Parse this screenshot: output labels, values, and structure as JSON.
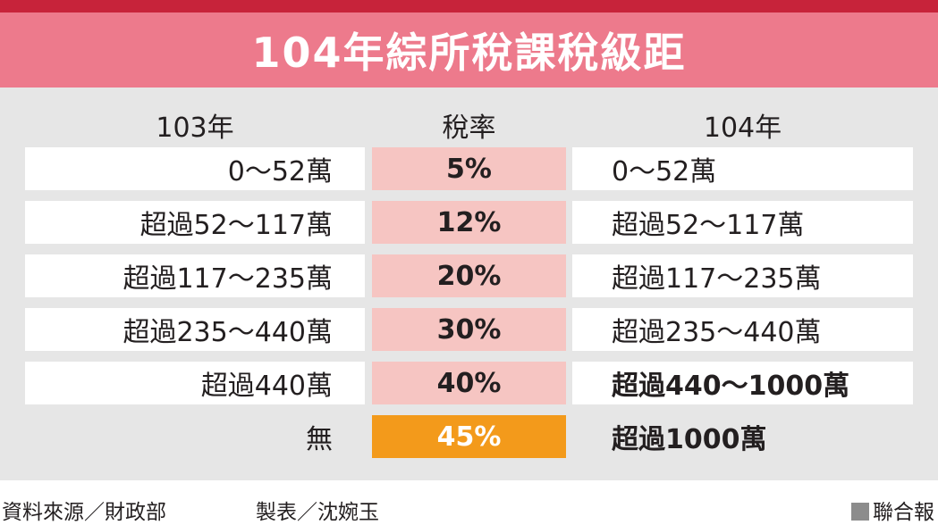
{
  "title": "104年綜所稅課稅級距",
  "headers": {
    "year_103": "103年",
    "rate": "稅率",
    "year_104": "104年"
  },
  "rows": [
    {
      "y103": "0～52萬",
      "rate": "5%",
      "y104": "0～52萬"
    },
    {
      "y103": "超過52～117萬",
      "rate": "12%",
      "y104": "超過52～117萬"
    },
    {
      "y103": "超過117～235萬",
      "rate": "20%",
      "y104": "超過117～235萬"
    },
    {
      "y103": "超過235～440萬",
      "rate": "30%",
      "y104": "超過235～440萬"
    },
    {
      "y103": "超過440萬",
      "rate": "40%",
      "y104": "超過440～1000萬"
    },
    {
      "y103": "無",
      "rate": "45%",
      "y104": "超過1000萬"
    }
  ],
  "footer": {
    "source": "資料來源／財政部",
    "maker": "製表／沈婉玉",
    "publisher": "聯合報"
  },
  "colors": {
    "top_bar": "#c7233a",
    "title_band": "#ed7a8c",
    "rate_cell": "#f6c5c2",
    "highlight": "#f39a1b",
    "panel": "#e6e6e6"
  }
}
